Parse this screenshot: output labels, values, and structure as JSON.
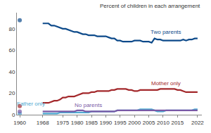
{
  "chart_data": {
    "type": "line",
    "y_label": "Percent of children in each arrangement",
    "x": [
      1960,
      1961,
      1968,
      1969,
      1970,
      1971,
      1972,
      1973,
      1974,
      1975,
      1976,
      1977,
      1978,
      1979,
      1980,
      1981,
      1982,
      1983,
      1984,
      1985,
      1986,
      1987,
      1988,
      1989,
      1990,
      1991,
      1992,
      1993,
      1994,
      1995,
      1996,
      1997,
      1998,
      1999,
      2000,
      2001,
      2002,
      2003,
      2004,
      2005,
      2006,
      2007,
      2008,
      2009,
      2010,
      2011,
      2012,
      2013,
      2014,
      2015,
      2016,
      2017,
      2018,
      2019,
      2020,
      2021,
      2022
    ],
    "series": [
      {
        "name": "Two parents",
        "color": "#0d4a8a",
        "values": [
          88,
          null,
          85,
          85,
          85,
          83,
          83,
          82,
          81,
          80,
          80,
          79,
          78,
          77,
          77,
          76,
          75,
          75,
          74,
          74,
          74,
          73,
          73,
          73,
          73,
          72,
          71,
          71,
          69,
          69,
          68,
          68,
          68,
          68,
          69,
          69,
          69,
          68,
          68,
          68,
          67,
          71,
          70,
          70,
          69,
          69,
          69,
          69,
          69,
          69,
          69,
          70,
          69,
          70,
          70,
          71,
          71
        ]
      },
      {
        "name": "Mother only",
        "color": "#a3282b",
        "values": [
          8,
          null,
          11,
          11,
          11,
          12,
          13,
          13,
          14,
          16,
          16,
          17,
          17,
          17,
          18,
          19,
          20,
          20,
          20,
          21,
          21,
          22,
          22,
          22,
          22,
          22,
          23,
          23,
          24,
          24,
          24,
          24,
          23,
          23,
          22,
          22,
          23,
          23,
          23,
          23,
          23,
          23,
          23,
          24,
          24,
          24,
          24,
          24,
          24,
          23,
          23,
          22,
          21,
          21,
          21,
          21,
          21
        ]
      },
      {
        "name": "Father only",
        "color": "#4fa9d1",
        "values": [
          1,
          null,
          1,
          1,
          1,
          1,
          1,
          1,
          2,
          2,
          2,
          2,
          2,
          2,
          2,
          2,
          2,
          2,
          2,
          3,
          3,
          3,
          3,
          3,
          3,
          3,
          3,
          3,
          4,
          4,
          4,
          4,
          4,
          4,
          4,
          4,
          5,
          5,
          5,
          5,
          5,
          4,
          3,
          3,
          3,
          4,
          4,
          4,
          4,
          4,
          4,
          4,
          4,
          4,
          4,
          5,
          5
        ]
      },
      {
        "name": "No parents",
        "color": "#7a5aa6",
        "values": [
          3,
          null,
          3,
          3,
          3,
          3,
          3,
          3,
          3,
          3,
          3,
          3,
          3,
          3,
          4,
          4,
          4,
          3,
          3,
          3,
          3,
          3,
          3,
          3,
          3,
          3,
          3,
          3,
          4,
          4,
          4,
          4,
          4,
          4,
          4,
          4,
          4,
          4,
          4,
          4,
          4,
          4,
          4,
          4,
          4,
          4,
          4,
          4,
          4,
          4,
          4,
          4,
          4,
          4,
          4,
          4,
          4
        ]
      }
    ],
    "annotations": [
      {
        "text": "Two parents",
        "x": 2011,
        "y": 77
      },
      {
        "text": "Mother only",
        "x": 2011,
        "y": 29
      },
      {
        "text": "Father only",
        "x": 1964,
        "y": 10
      },
      {
        "text": "No parents",
        "x": 1984,
        "y": 9
      }
    ],
    "xlim": [
      1959,
      2023.5
    ],
    "xticks": [
      1960,
      1968,
      1975,
      1980,
      1985,
      1990,
      1995,
      2000,
      2005,
      2010,
      2015,
      2022
    ],
    "ylim": [
      0,
      95
    ],
    "yticks": [
      0,
      20,
      40,
      60,
      80
    ],
    "grid": false,
    "legend": "none"
  }
}
